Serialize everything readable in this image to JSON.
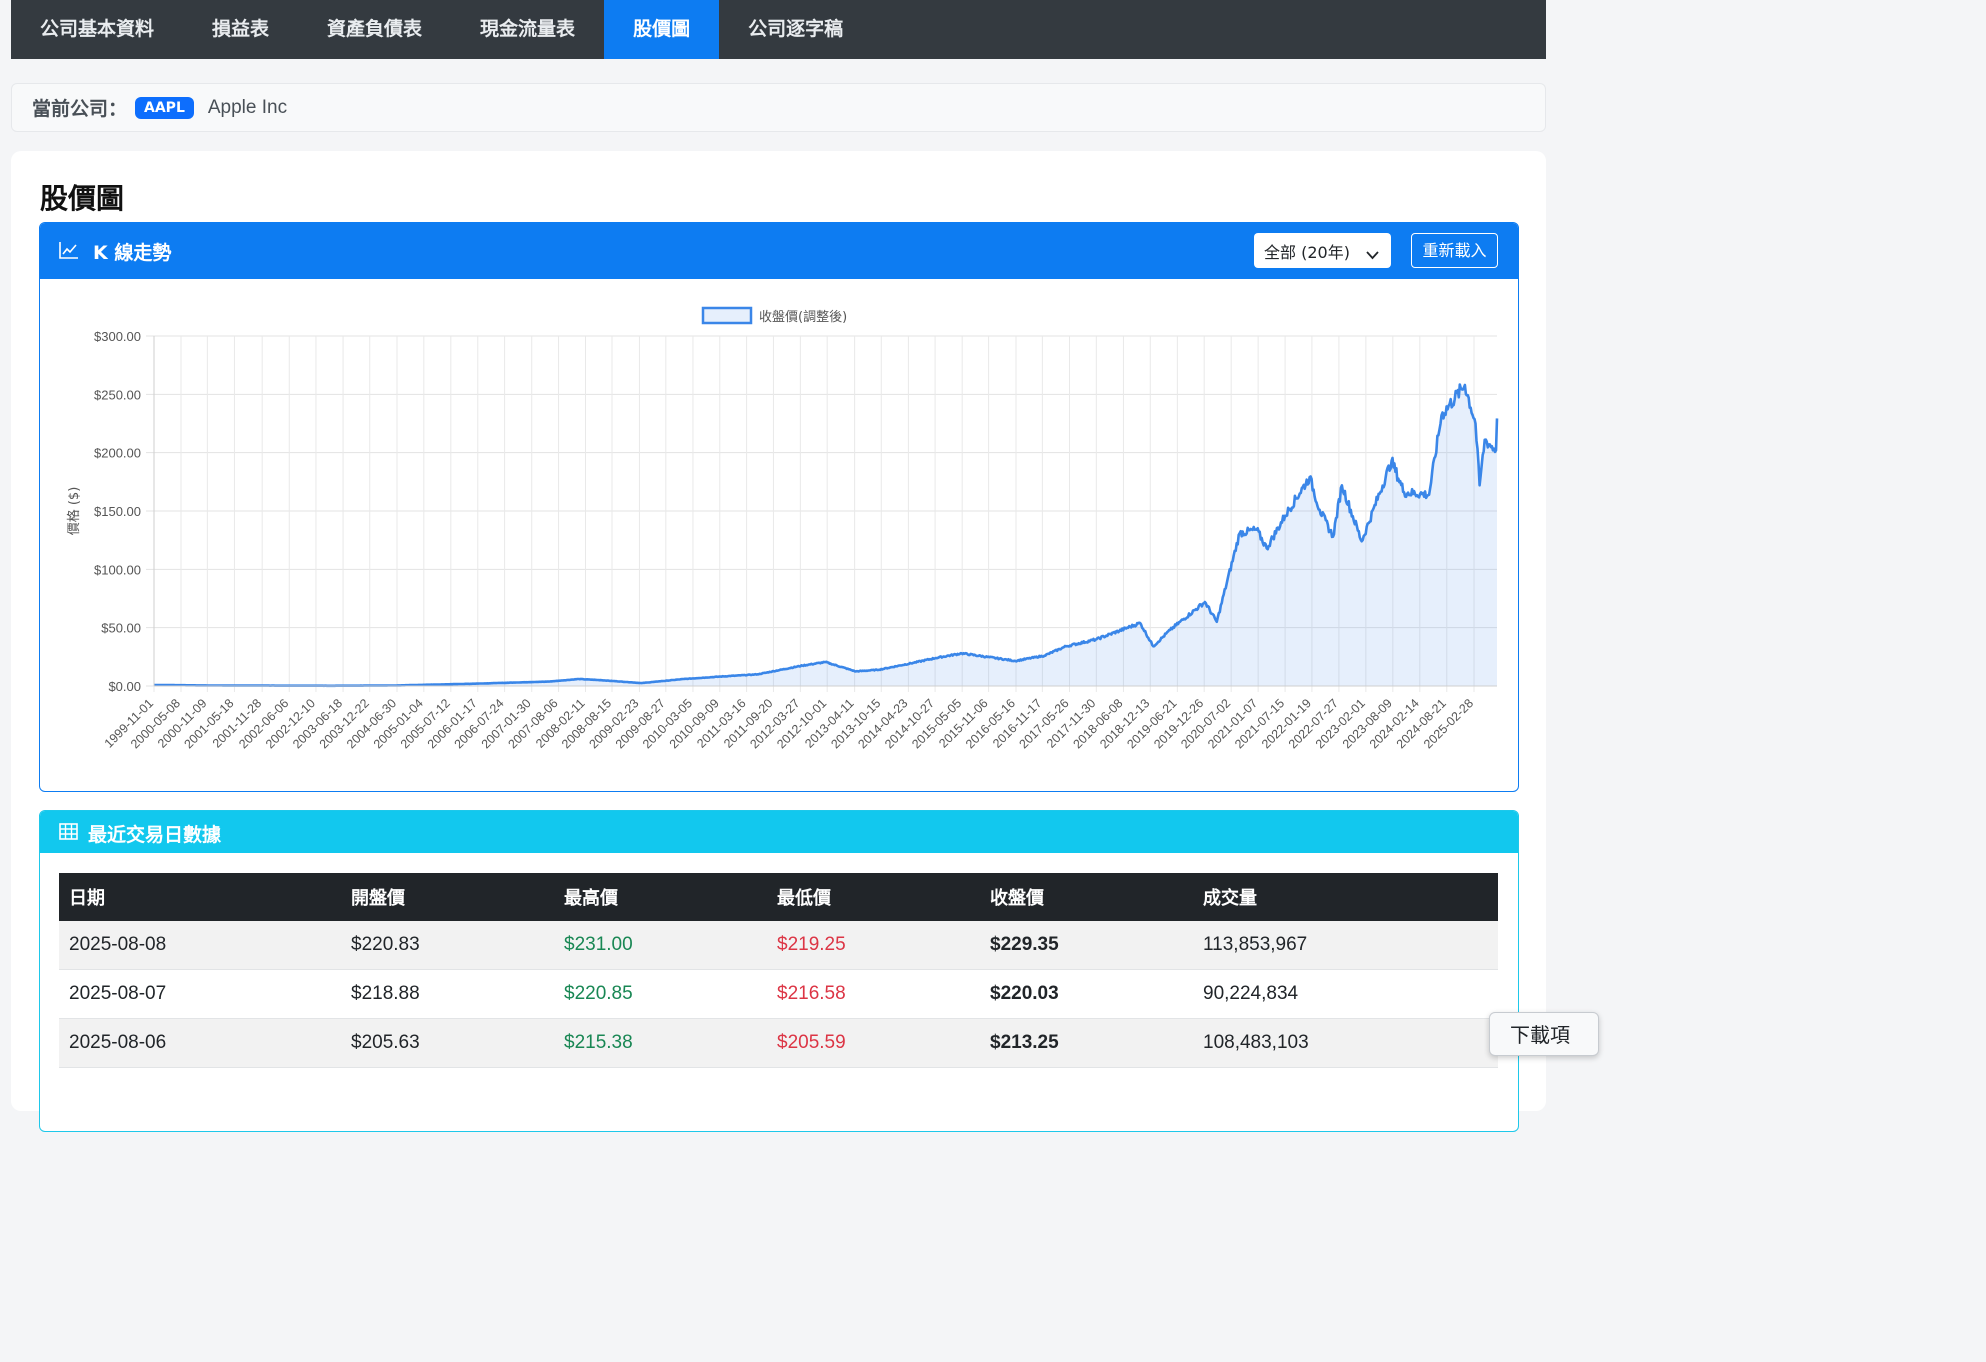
{
  "nav": {
    "tabs": [
      {
        "label": "公司基本資料",
        "active": false
      },
      {
        "label": "損益表",
        "active": false
      },
      {
        "label": "資產負債表",
        "active": false
      },
      {
        "label": "現金流量表",
        "active": false
      },
      {
        "label": "股價圖",
        "active": true
      },
      {
        "label": "公司逐字稿",
        "active": false
      }
    ]
  },
  "company": {
    "label": "當前公司：",
    "ticker": "AAPL",
    "name": "Apple Inc"
  },
  "page": {
    "title": "股價圖"
  },
  "chart_panel": {
    "title": "K 線走勢",
    "range_select": "全部 (20年)",
    "reload_label": "重新載入",
    "icon": "line-chart-icon"
  },
  "chart_data": {
    "type": "area",
    "legend": "收盤價(調整後)",
    "legend_position": "top",
    "ylabel": "價格 ($)",
    "ylim": [
      0,
      300
    ],
    "yticks": [
      "$0.00",
      "$50.00",
      "$100.00",
      "$150.00",
      "$200.00",
      "$250.00",
      "$300.00"
    ],
    "xtick_labels": [
      "1999-11-01",
      "2000-05-08",
      "2000-11-09",
      "2001-05-18",
      "2001-11-28",
      "2002-06-06",
      "2002-12-10",
      "2003-06-18",
      "2003-12-22",
      "2004-06-30",
      "2005-01-04",
      "2005-07-12",
      "2006-01-17",
      "2006-07-24",
      "2007-01-30",
      "2007-08-06",
      "2008-02-11",
      "2008-08-15",
      "2009-02-23",
      "2009-08-27",
      "2010-03-05",
      "2010-09-09",
      "2011-03-16",
      "2011-09-20",
      "2012-03-27",
      "2012-10-01",
      "2013-04-11",
      "2013-10-15",
      "2014-04-23",
      "2014-10-27",
      "2015-05-05",
      "2015-11-06",
      "2016-05-16",
      "2016-11-17",
      "2017-05-26",
      "2017-11-30",
      "2018-06-08",
      "2018-12-13",
      "2019-06-21",
      "2019-12-26",
      "2020-07-02",
      "2021-01-07",
      "2021-07-15",
      "2022-01-19",
      "2022-07-27",
      "2023-02-01",
      "2023-08-09",
      "2024-02-14",
      "2024-08-21",
      "2025-02-28"
    ],
    "x": [
      "1999-11-01",
      "2001-01-01",
      "2003-04-01",
      "2004-06-01",
      "2005-01-01",
      "2006-01-01",
      "2007-06-01",
      "2007-12-27",
      "2008-06-01",
      "2009-03-09",
      "2010-01-01",
      "2010-09-01",
      "2011-06-01",
      "2012-04-10",
      "2012-09-19",
      "2013-04-19",
      "2013-10-01",
      "2014-06-01",
      "2014-11-01",
      "2015-05-01",
      "2016-05-12",
      "2016-12-01",
      "2017-05-01",
      "2017-12-01",
      "2018-10-03",
      "2019-01-03",
      "2019-05-01",
      "2019-12-31",
      "2020-03-23",
      "2020-08-31",
      "2020-12-28",
      "2021-03-08",
      "2021-07-15",
      "2022-01-03",
      "2022-03-14",
      "2022-06-16",
      "2022-08-17",
      "2023-01-03",
      "2023-07-31",
      "2023-10-27",
      "2024-04-19",
      "2024-07-15",
      "2024-12-26",
      "2025-03-10",
      "2025-04-08",
      "2025-05-14",
      "2025-08-01",
      "2025-08-08"
    ],
    "y": [
      0.9,
      0.4,
      0.2,
      0.4,
      1.0,
      2.0,
      3.8,
      6.0,
      5.0,
      2.5,
      6.0,
      8.0,
      10.0,
      17.5,
      20.5,
      12.5,
      14.0,
      20.0,
      24.0,
      28.0,
      21.5,
      26.0,
      34.0,
      40.0,
      54.0,
      34.0,
      48.0,
      72.0,
      55.0,
      131.0,
      134.0,
      118.0,
      146.0,
      179.0,
      151.0,
      128.0,
      172.0,
      124.0,
      193.0,
      166.0,
      164.0,
      232.0,
      258.0,
      225.0,
      172.0,
      211.0,
      202.0,
      229.35
    ],
    "color": "#3a86e8",
    "fill": "rgba(58,134,232,0.13)"
  },
  "table_panel": {
    "title": "最近交易日數據",
    "icon": "table-icon",
    "headers": [
      "日期",
      "開盤價",
      "最高價",
      "最低價",
      "收盤價",
      "成交量"
    ],
    "rows": [
      [
        "2025-08-08",
        "$220.83",
        "$231.00",
        "$219.25",
        "$229.35",
        "113,853,967"
      ],
      [
        "2025-08-07",
        "$218.88",
        "$220.85",
        "$216.58",
        "$220.03",
        "90,224,834"
      ],
      [
        "2025-08-06",
        "$205.63",
        "$215.38",
        "$205.59",
        "$213.25",
        "108,483,103"
      ]
    ]
  },
  "download_tip": "下載項"
}
